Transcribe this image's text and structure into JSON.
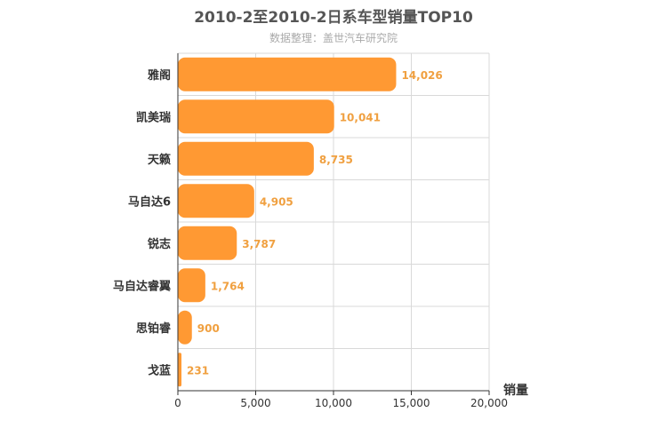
{
  "chart_data": {
    "type": "bar",
    "orientation": "horizontal",
    "title": "2010-2至2010-2日系车型销量TOP10",
    "subtitle": "数据整理：盖世汽车研究院",
    "xlabel": "销量",
    "ylabel": "",
    "categories": [
      "雅阁",
      "凯美瑞",
      "天籁",
      "马自达6",
      "锐志",
      "马自达睿翼",
      "思铂睿",
      "戈蓝"
    ],
    "values": [
      14026,
      10041,
      8735,
      4905,
      3787,
      1764,
      900,
      231
    ],
    "value_labels": [
      "14,026",
      "10,041",
      "8,735",
      "4,905",
      "3,787",
      "1,764",
      "900",
      "231"
    ],
    "xlim": [
      0,
      20000
    ],
    "xticks": [
      0,
      5000,
      10000,
      15000,
      20000
    ],
    "xtick_labels": [
      "0",
      "5,000",
      "10,000",
      "15,000",
      "20,000"
    ],
    "grid": true,
    "legend": "none",
    "bar_color": "#ff9933",
    "label_color": "#f0a040"
  }
}
